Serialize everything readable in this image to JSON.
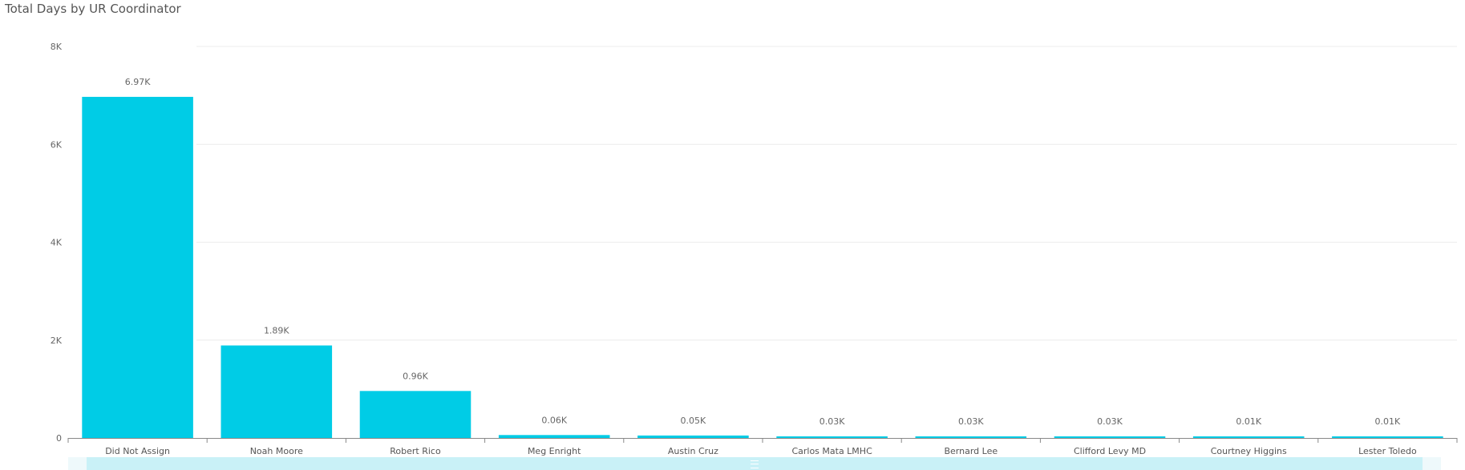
{
  "chart_data": {
    "type": "bar",
    "title": "Total Days by UR Coordinator",
    "categories": [
      "Did Not Assign",
      "Noah Moore",
      "Robert Rico",
      "Meg Enright",
      "Austin Cruz",
      "Carlos Mata LMHC",
      "Bernard Lee",
      "Clifford Levy MD",
      "Courtney Higgins",
      "Lester Toledo"
    ],
    "values": [
      6970,
      1890,
      960,
      60,
      50,
      30,
      30,
      30,
      10,
      10
    ],
    "data_labels": [
      "6.97K",
      "1.89K",
      "0.96K",
      "0.06K",
      "0.05K",
      "0.03K",
      "0.03K",
      "0.03K",
      "0.01K",
      "0.01K"
    ],
    "yticks": [
      0,
      2000,
      4000,
      6000,
      8000
    ],
    "ytick_labels": [
      "0",
      "2K",
      "4K",
      "6K",
      "8K"
    ],
    "ylim": [
      0,
      8000
    ],
    "xlabel": "",
    "ylabel": "",
    "grid": true,
    "bar_color": "#00CCE6"
  }
}
